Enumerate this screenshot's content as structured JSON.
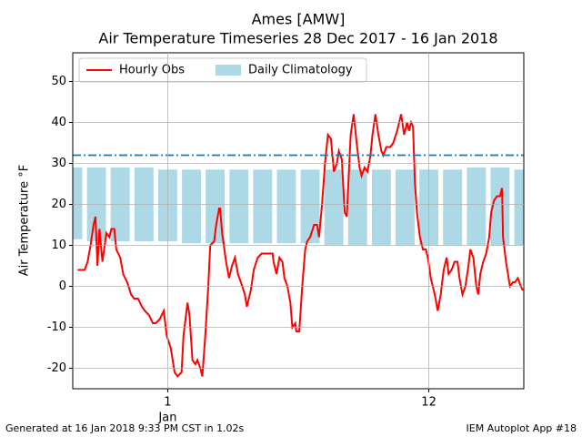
{
  "chart_data": {
    "type": "line",
    "title": "Ames [AMW]",
    "subtitle": "Air Temperature Timeseries 28 Dec 2017 - 16 Jan 2018",
    "ylabel": "Air Temperature °F",
    "xlim": [
      "2017-12-28T00:00",
      "2018-01-16T00:00"
    ],
    "xticks": [
      {
        "value": "2018-01-01T00:00",
        "label": "1",
        "sublabel": "Jan"
      },
      {
        "value": "2018-01-12T00:00",
        "label": "12"
      }
    ],
    "ylim": [
      -25,
      57
    ],
    "yticks": [
      -20,
      -10,
      0,
      10,
      20,
      30,
      40,
      50
    ],
    "grid": true,
    "legend": "upper left",
    "reference_line": {
      "value": 32,
      "color": "#1f77b4"
    },
    "series": [
      {
        "name": "Hourly Obs",
        "color": "#ff0000",
        "x": [
          "2017-12-28T05:00",
          "2017-12-28T12:00",
          "2017-12-28T15:00",
          "2017-12-28T18:00",
          "2017-12-28T21:00",
          "2017-12-28T23:00",
          "2017-12-29T01:00",
          "2017-12-29T03:00",
          "2017-12-29T06:00",
          "2017-12-29T10:00",
          "2017-12-29T13:00",
          "2017-12-29T15:00",
          "2017-12-29T18:00",
          "2017-12-29T20:00",
          "2017-12-30T00:00",
          "2017-12-30T03:00",
          "2017-12-30T07:00",
          "2017-12-30T11:00",
          "2017-12-30T14:00",
          "2017-12-30T18:00",
          "2017-12-30T22:00",
          "2017-12-31T01:00",
          "2017-12-31T05:00",
          "2017-12-31T09:00",
          "2017-12-31T12:00",
          "2017-12-31T16:00",
          "2017-12-31T20:00",
          "2017-12-31T21:00",
          "2017-12-31T23:00",
          "2018-01-01T03:00",
          "2018-01-01T07:00",
          "2018-01-01T10:00",
          "2018-01-01T14:00",
          "2018-01-01T16:00",
          "2018-01-01T19:00",
          "2018-01-01T20:00",
          "2018-01-01T22:00",
          "2018-01-02T01:00",
          "2018-01-02T04:00",
          "2018-01-02T06:00",
          "2018-01-02T09:00",
          "2018-01-02T11:00",
          "2018-01-02T14:00",
          "2018-01-02T17:00",
          "2018-01-02T19:00",
          "2018-01-02T23:00",
          "2018-01-03T01:00",
          "2018-01-03T04:00",
          "2018-01-03T05:00",
          "2018-01-03T07:00",
          "2018-01-03T11:00",
          "2018-01-03T14:00",
          "2018-01-03T17:00",
          "2018-01-03T20:00",
          "2018-01-03T23:00",
          "2018-01-04T02:00",
          "2018-01-04T06:00",
          "2018-01-04T08:00",
          "2018-01-04T12:00",
          "2018-01-04T15:00",
          "2018-01-04T19:00",
          "2018-01-04T23:00",
          "2018-01-05T02:00",
          "2018-01-05T06:00",
          "2018-01-05T10:00",
          "2018-01-05T11:00",
          "2018-01-05T14:00",
          "2018-01-05T17:00",
          "2018-01-05T20:00",
          "2018-01-05T22:00",
          "2018-01-06T01:00",
          "2018-01-06T04:00",
          "2018-01-06T06:00",
          "2018-01-06T09:00",
          "2018-01-06T10:00",
          "2018-01-06T13:00",
          "2018-01-06T16:00",
          "2018-01-06T19:00",
          "2018-01-06T21:00",
          "2018-01-07T00:00",
          "2018-01-07T04:00",
          "2018-01-07T07:00",
          "2018-01-07T09:00",
          "2018-01-07T12:00",
          "2018-01-07T15:00",
          "2018-01-07T18:00",
          "2018-01-07T21:00",
          "2018-01-08T00:00",
          "2018-01-08T03:00",
          "2018-01-08T05:00",
          "2018-01-08T08:00",
          "2018-01-08T11:00",
          "2018-01-08T13:00",
          "2018-01-08T15:00",
          "2018-01-08T17:00",
          "2018-01-08T20:00",
          "2018-01-08T23:00",
          "2018-01-09T02:00",
          "2018-01-09T04:00",
          "2018-01-09T07:00",
          "2018-01-09T10:00",
          "2018-01-09T13:00",
          "2018-01-09T15:00",
          "2018-01-09T18:00",
          "2018-01-09T21:00",
          "2018-01-10T00:00",
          "2018-01-10T02:00",
          "2018-01-10T05:00",
          "2018-01-10T09:00",
          "2018-01-10T12:00",
          "2018-01-10T16:00",
          "2018-01-10T20:00",
          "2018-01-10T23:00",
          "2018-01-11T02:00",
          "2018-01-11T04:00",
          "2018-01-11T06:00",
          "2018-01-11T08:00",
          "2018-01-11T10:00",
          "2018-01-11T12:00",
          "2018-01-11T15:00",
          "2018-01-11T18:00",
          "2018-01-11T21:00",
          "2018-01-11T23:00",
          "2018-01-12T02:00",
          "2018-01-12T06:00",
          "2018-01-12T09:00",
          "2018-01-12T12:00",
          "2018-01-12T15:00",
          "2018-01-12T18:00",
          "2018-01-12T20:00",
          "2018-01-12T23:00",
          "2018-01-13T02:00",
          "2018-01-13T05:00",
          "2018-01-13T07:00",
          "2018-01-13T10:00",
          "2018-01-13T13:00",
          "2018-01-13T16:00",
          "2018-01-13T18:00",
          "2018-01-13T21:00",
          "2018-01-14T00:00",
          "2018-01-14T02:00",
          "2018-01-14T04:00",
          "2018-01-14T07:00",
          "2018-01-14T10:00",
          "2018-01-14T13:00",
          "2018-01-14T15:00",
          "2018-01-14T18:00",
          "2018-01-14T21:00",
          "2018-01-15T00:00",
          "2018-01-15T02:00",
          "2018-01-15T03:00",
          "2018-01-15T06:00",
          "2018-01-15T10:00",
          "2018-01-15T13:00",
          "2018-01-15T15:00",
          "2018-01-15T18:00",
          "2018-01-15T21:00",
          "2018-01-15T23:00"
        ],
        "values": [
          4,
          4,
          6,
          10,
          15,
          17,
          5,
          14,
          6,
          13,
          12,
          14,
          14,
          9,
          7,
          3,
          1,
          -2,
          -3,
          -3,
          -5,
          -6,
          -7,
          -9,
          -9,
          -8,
          -6,
          -8,
          -12,
          -15,
          -21,
          -22,
          -21,
          -12,
          -6,
          -4,
          -7,
          -18,
          -19,
          -18,
          -20,
          -22,
          -12,
          0,
          10,
          11,
          15,
          19,
          19,
          13,
          6,
          2,
          5,
          7,
          3,
          1,
          -2,
          -5,
          -1,
          4,
          7,
          8,
          8,
          8,
          8,
          6,
          3,
          7,
          6,
          2,
          0,
          -4,
          -10,
          -9,
          -11,
          -11,
          0,
          9,
          11,
          12,
          15,
          15,
          12,
          20,
          30,
          37,
          36,
          28,
          30,
          33,
          31,
          18,
          17,
          27,
          37,
          42,
          35,
          29,
          27,
          29,
          28,
          32,
          37,
          42,
          37,
          33,
          32,
          34,
          34,
          35,
          38,
          42,
          37,
          40,
          38,
          40,
          39,
          25,
          18,
          12,
          9,
          9,
          7,
          2,
          -2,
          -6,
          -2,
          4,
          7,
          3,
          4,
          6,
          6,
          2,
          -2,
          0,
          5,
          9,
          7,
          0,
          -2,
          3,
          6,
          8,
          12,
          18,
          21,
          22,
          22,
          24,
          12,
          6,
          0,
          1,
          1,
          2,
          0,
          -1
        ]
      },
      {
        "name": "Daily Climatology",
        "color": "#add8e6",
        "x": [
          "2017-12-28T00:00",
          "2017-12-29T00:00",
          "2017-12-30T00:00",
          "2017-12-31T00:00",
          "2018-01-01T00:00",
          "2018-01-02T00:00",
          "2018-01-03T00:00",
          "2018-01-04T00:00",
          "2018-01-05T00:00",
          "2018-01-06T00:00",
          "2018-01-07T00:00",
          "2018-01-08T00:00",
          "2018-01-09T00:00",
          "2018-01-10T00:00",
          "2018-01-11T00:00",
          "2018-01-12T00:00",
          "2018-01-13T00:00",
          "2018-01-14T00:00",
          "2018-01-15T00:00",
          "2018-01-16T00:00"
        ],
        "values": [
          29,
          29,
          29,
          29,
          28.5,
          28.5,
          28.5,
          28.5,
          28.5,
          28.5,
          28.5,
          28.5,
          28.5,
          28.5,
          28.5,
          28.5,
          28.5,
          29,
          29,
          28.5
        ],
        "lows": [
          11.5,
          11,
          11,
          11,
          11,
          10.5,
          10.5,
          10.5,
          10.5,
          10.5,
          10.5,
          10,
          10,
          10,
          10,
          10,
          10,
          10,
          10,
          10
        ]
      }
    ],
    "footer_left": "Generated at 16 Jan 2018 9:33 PM CST in 1.02s",
    "footer_right": "IEM Autoplot App #18"
  }
}
